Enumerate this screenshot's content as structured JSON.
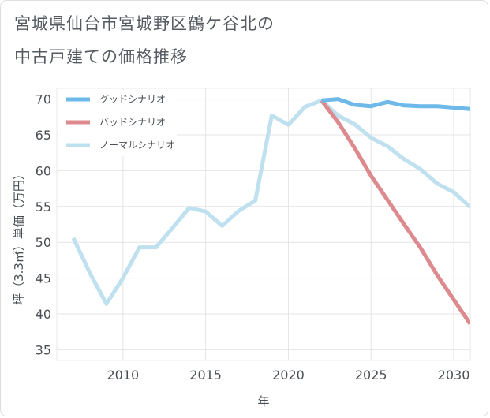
{
  "title": {
    "line1": "宮城県仙台市宮城野区鶴ケ谷北の",
    "line2": "中古戸建ての価格推移"
  },
  "chart_data": {
    "type": "line",
    "title": "宮城県仙台市宮城野区鶴ケ谷北の中古戸建ての価格推移",
    "xlabel": "年",
    "ylabel": "坪（3.3㎡）単価（万円）",
    "xlim": [
      2006,
      2031
    ],
    "ylim": [
      33.5,
      71.5
    ],
    "xticks": [
      2010,
      2015,
      2020,
      2025,
      2030
    ],
    "yticks": [
      35,
      40,
      45,
      50,
      55,
      60,
      65,
      70
    ],
    "grid": true,
    "legend_position": "top-left",
    "series": [
      {
        "name": "グッドシナリオ",
        "color": "#6cb9ea",
        "x": [
          2022,
          2023,
          2024,
          2025,
          2026,
          2027,
          2028,
          2029,
          2030,
          2031
        ],
        "y": [
          69.8,
          70.0,
          69.2,
          69.0,
          69.6,
          69.1,
          69.0,
          69.0,
          68.8,
          68.6
        ]
      },
      {
        "name": "バッドシナリオ",
        "color": "#dd8a8f",
        "x": [
          2022,
          2023,
          2024,
          2025,
          2026,
          2027,
          2028,
          2029,
          2030,
          2031
        ],
        "y": [
          69.8,
          66.8,
          63.2,
          59.3,
          55.9,
          52.5,
          49.2,
          45.4,
          42.0,
          38.6
        ]
      },
      {
        "name": "ノーマルシナリオ",
        "color": "#bfe0ee",
        "x": [
          2007,
          2008,
          2009,
          2010,
          2011,
          2012,
          2013,
          2014,
          2015,
          2016,
          2017,
          2018,
          2019,
          2020,
          2021,
          2022,
          2023,
          2024,
          2025,
          2026,
          2027,
          2028,
          2029,
          2030,
          2031
        ],
        "y": [
          50.6,
          45.7,
          41.4,
          45.0,
          49.3,
          49.3,
          52.0,
          54.8,
          54.3,
          52.3,
          54.4,
          55.8,
          67.7,
          66.4,
          68.9,
          69.8,
          67.7,
          66.5,
          64.6,
          63.4,
          61.6,
          60.2,
          58.2,
          57.0,
          54.9
        ]
      }
    ]
  }
}
